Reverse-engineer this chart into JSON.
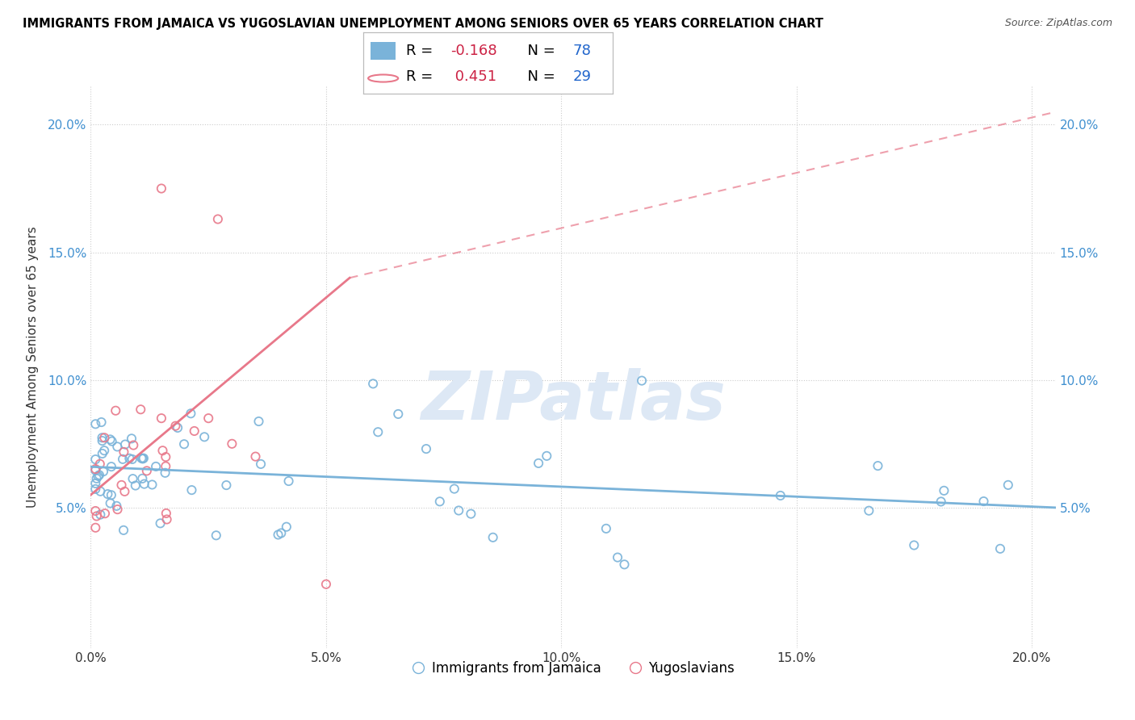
{
  "title": "IMMIGRANTS FROM JAMAICA VS YUGOSLAVIAN UNEMPLOYMENT AMONG SENIORS OVER 65 YEARS CORRELATION CHART",
  "source": "Source: ZipAtlas.com",
  "ylabel": "Unemployment Among Seniors over 65 years",
  "xlim": [
    0.0,
    0.205
  ],
  "ylim": [
    -0.005,
    0.215
  ],
  "xticks": [
    0.0,
    0.05,
    0.1,
    0.15,
    0.2
  ],
  "yticks": [
    0.05,
    0.1,
    0.15,
    0.2
  ],
  "xtick_labels": [
    "0.0%",
    "5.0%",
    "10.0%",
    "15.0%",
    "20.0%"
  ],
  "ytick_labels": [
    "5.0%",
    "10.0%",
    "15.0%",
    "20.0%"
  ],
  "blue_color": "#7ab3d9",
  "pink_color": "#e8788a",
  "blue_label": "Immigrants from Jamaica",
  "pink_label": "Yugoslavians",
  "blue_R": -0.168,
  "blue_N": 78,
  "pink_R": 0.451,
  "pink_N": 29,
  "watermark": "ZIPatlas",
  "legend_R_color": "#e03060",
  "legend_N_color": "#2060d0"
}
